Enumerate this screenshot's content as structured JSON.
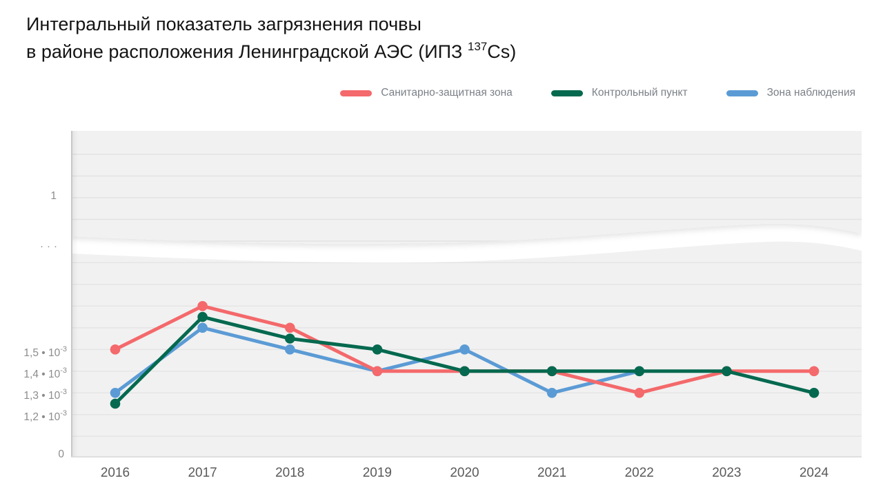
{
  "title": {
    "line1": "Интегральный показатель загрязнения почвы",
    "line2_prefix": "в районе расположения Ленинградской АЭС (ИПЗ ",
    "line2_sup": "137",
    "line2_suffix": "Cs)"
  },
  "chart_data": {
    "type": "line",
    "title": "Интегральный показатель загрязнения почвы в районе расположения Ленинградской АЭС (ИПЗ 137Cs)",
    "categories": [
      "2016",
      "2017",
      "2018",
      "2019",
      "2020",
      "2021",
      "2022",
      "2023",
      "2024"
    ],
    "series": [
      {
        "name": "Санитарно-защитная зона",
        "color": "#F4696B",
        "values": [
          0.0015,
          0.0017,
          0.0016,
          0.0014,
          0.0014,
          0.0014,
          0.0013,
          0.0014,
          0.0014
        ]
      },
      {
        "name": "Контрольный пункт",
        "color": "#04694F",
        "values": [
          0.00125,
          0.00165,
          0.00155,
          0.0015,
          0.0014,
          0.0014,
          0.0014,
          0.0014,
          0.0013
        ]
      },
      {
        "name": "Зона наблюдения",
        "color": "#5B9BD5",
        "values": [
          0.0013,
          0.0016,
          0.0015,
          0.0014,
          0.0015,
          0.0013,
          0.0014,
          null,
          null
        ]
      }
    ],
    "draw_order": [
      2,
      0,
      1
    ],
    "legend_position": "top-right",
    "grid": true,
    "y_axis": {
      "axis_break": true,
      "upper_tick": "1",
      "break_marker": "···",
      "lower_ticks": [
        {
          "base": "1,5 • 10",
          "sup": "-3",
          "value": 0.0015
        },
        {
          "base": "1,4 • 10",
          "sup": "-3",
          "value": 0.0014
        },
        {
          "base": "1,3 • 10",
          "sup": "-3",
          "value": 0.0013
        },
        {
          "base": "1,2 • 10",
          "sup": "-3",
          "value": 0.0012
        }
      ],
      "bottom_tick": "0"
    }
  }
}
